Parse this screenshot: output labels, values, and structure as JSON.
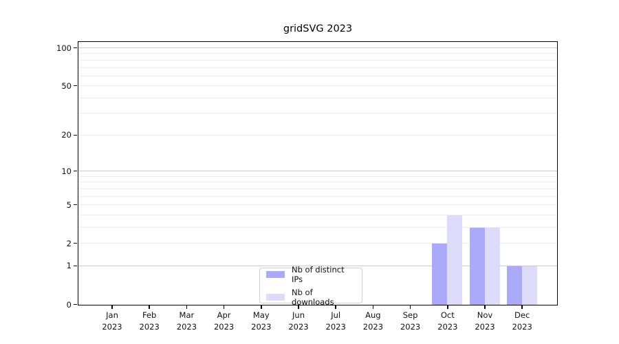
{
  "chart_data": {
    "type": "bar",
    "title": "gridSVG 2023",
    "categories": [
      "Jan",
      "Feb",
      "Mar",
      "Apr",
      "May",
      "Jun",
      "Jul",
      "Aug",
      "Sep",
      "Oct",
      "Nov",
      "Dec"
    ],
    "category_year": "2023",
    "series": [
      {
        "name": "Nb of distinct IPs",
        "color": "#aaaaf9",
        "values": [
          0,
          0,
          0,
          0,
          0,
          0,
          0,
          0,
          0,
          2,
          3,
          1
        ]
      },
      {
        "name": "Nb of downloads",
        "color": "#dcdcfa",
        "values": [
          0,
          0,
          0,
          0,
          0,
          0,
          0,
          0,
          0,
          4,
          3,
          1
        ]
      }
    ],
    "yscale": "log1p",
    "ylim": [
      0,
      115
    ],
    "yticks": [
      0,
      1,
      2,
      5,
      10,
      20,
      50,
      100
    ],
    "ytick_labels": [
      "0",
      "1",
      "2",
      "5",
      "10",
      "20",
      "50",
      "100"
    ],
    "major_gridlines": [
      1,
      10,
      100
    ],
    "minor_gridlines": [
      2,
      3,
      4,
      5,
      6,
      7,
      8,
      9,
      20,
      30,
      40,
      50,
      60,
      70,
      80,
      90
    ],
    "grid": true,
    "legend_position": "lower center",
    "axis_color": "#000000",
    "major_grid_color": "#c9c9c9",
    "minor_grid_color": "#ededed"
  }
}
